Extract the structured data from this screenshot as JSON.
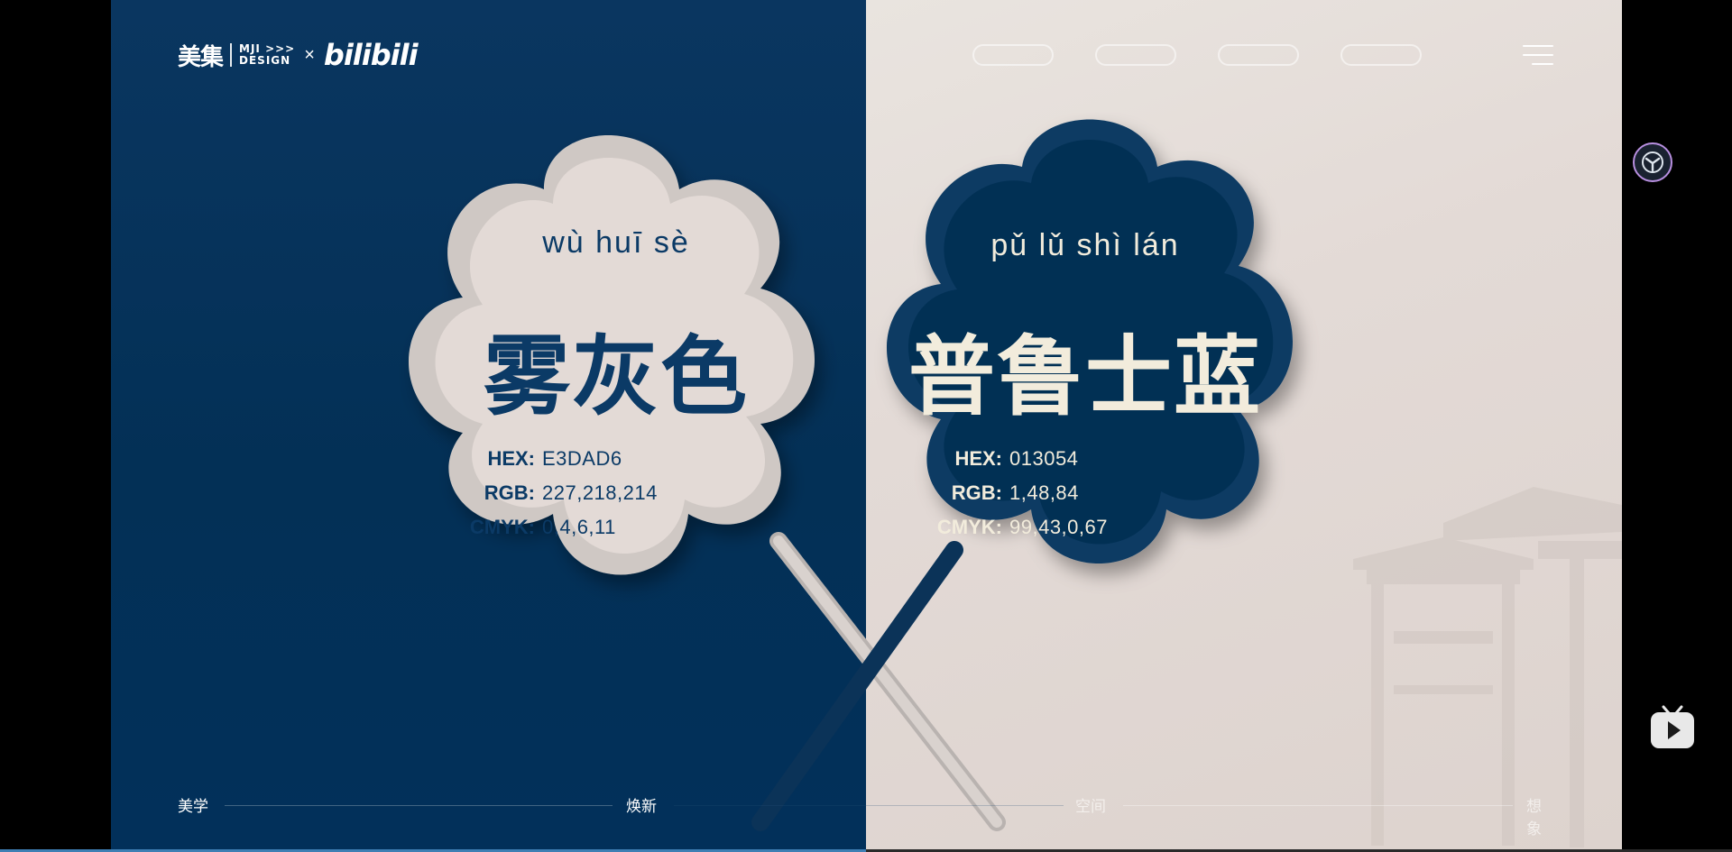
{
  "header": {
    "logo_brand": "美集",
    "logo_design_line1": "MJI >>>",
    "logo_design_line2": "DESIGN",
    "logo_x": "×",
    "logo_partner": "bilibili",
    "nav_pill_count": 4
  },
  "fans": [
    {
      "pinyin": "wù  huī  sè",
      "name": "雾灰色",
      "specs": [
        {
          "key": "HEX:",
          "value": "E3DAD6"
        },
        {
          "key": "RGB:",
          "value": "227,218,214"
        },
        {
          "key": "CMYK:",
          "value": "0,4,6,11"
        }
      ],
      "color": "#E3DAD6",
      "text_color": "#0b3a66"
    },
    {
      "pinyin": "pǔ  lǔ  shì  lán",
      "name": "普鲁士蓝",
      "specs": [
        {
          "key": "HEX:",
          "value": "013054"
        },
        {
          "key": "RGB:",
          "value": "1,48,84"
        },
        {
          "key": "CMYK:",
          "value": "99,43,0,67"
        }
      ],
      "color": "#013054",
      "text_color": "#f2ecdc"
    }
  ],
  "footer": {
    "labels": [
      "美学",
      "焕新",
      "空间",
      "想象"
    ]
  },
  "video": {
    "progress_fraction": 0.5
  },
  "colors": {
    "left_bg": "#033056",
    "right_bg": "#E3DAD6",
    "progress": "#3f7fb4"
  },
  "icons": {
    "menu": "hamburger-menu-icon",
    "side_avatar": "user-avatar-icon",
    "tv": "bilibili-tv-icon"
  }
}
